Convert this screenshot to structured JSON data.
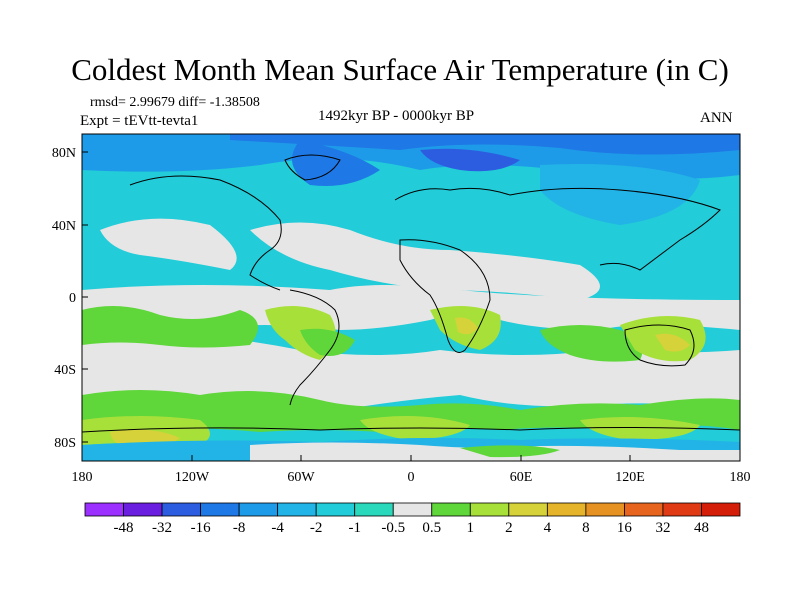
{
  "title": "Coldest Month Mean Surface Air Temperature (in C)",
  "stats_line": "rmsd= 2.99679  diff= -1.38508",
  "experiment_line": "Expt = tEVtt-tevta1",
  "period_line": "1492kyr BP - 0000kyr BP",
  "season_label": "ANN",
  "map": {
    "lat_ticks": [
      "80N",
      "40N",
      "0",
      "40S",
      "80S"
    ],
    "lon_ticks": [
      "180",
      "120W",
      "60W",
      "0",
      "60E",
      "120E",
      "180"
    ]
  },
  "colorbar": {
    "labels": [
      "-48",
      "-32",
      "-16",
      "-8",
      "-4",
      "-2",
      "-1",
      "-0.5",
      "0.5",
      "1",
      "2",
      "4",
      "8",
      "16",
      "32",
      "48"
    ],
    "colors": [
      "#9b30ff",
      "#6a1fe0",
      "#2c5de0",
      "#1e78e6",
      "#1e9be8",
      "#22b4e6",
      "#22ccd8",
      "#2ad9bb",
      "#e6e6e6",
      "#5fd63a",
      "#a8e03a",
      "#d6d23a",
      "#e6b42a",
      "#e69222",
      "#e6641e",
      "#e03a14",
      "#d41e0a"
    ]
  },
  "legend_colors": {
    "land_outline": "#000000",
    "base_cool": "#22ccd8",
    "near_zero": "#e6e6e6",
    "warm": "#a8e03a"
  }
}
